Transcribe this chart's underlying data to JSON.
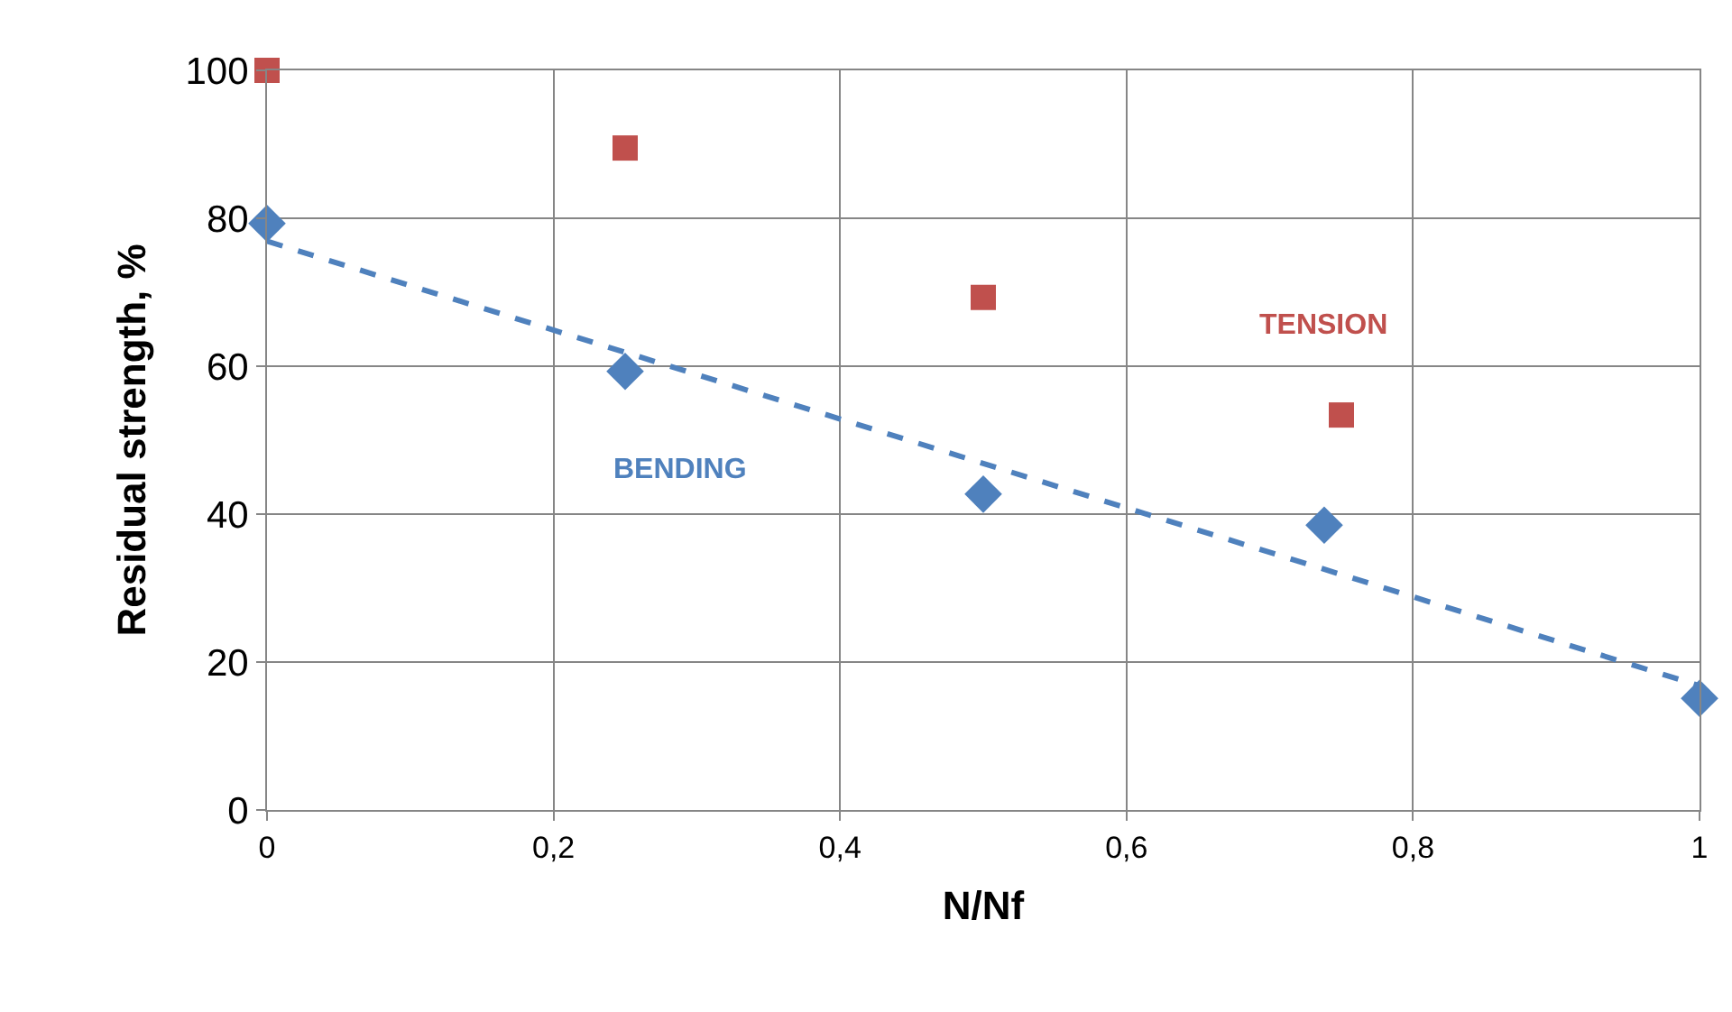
{
  "chart_data": {
    "type": "scatter",
    "xlabel": "N/Nf",
    "ylabel": "Residual strength, %",
    "xlim": [
      0,
      1
    ],
    "ylim": [
      0,
      100
    ],
    "xticks": [
      0,
      {
        "value": 0.2,
        "label": "0,2"
      },
      {
        "value": 0.4,
        "label": "0,4"
      },
      {
        "value": 0.6,
        "label": "0,6"
      },
      {
        "value": 0.8,
        "label": "0,8"
      },
      1
    ],
    "yticks": [
      0,
      20,
      40,
      60,
      80,
      100
    ],
    "grid": true,
    "series": [
      {
        "name": "TENSION",
        "marker": "square",
        "color": "#c0504d",
        "x": [
          0,
          0.25,
          0.5,
          0.75
        ],
        "values": [
          100,
          89.5,
          69.3,
          53.4
        ]
      },
      {
        "name": "BENDING",
        "marker": "diamond",
        "color": "#4f81bd",
        "x": [
          0,
          0.25,
          0.5,
          0.738,
          1
        ],
        "values": [
          79.3,
          59.3,
          42.7,
          38.5,
          15.1
        ]
      },
      {
        "type": "line",
        "line_style": "dashed",
        "color": "#4f81bd",
        "x": [
          0,
          1
        ],
        "values": [
          76.9,
          16.8
        ]
      }
    ]
  }
}
